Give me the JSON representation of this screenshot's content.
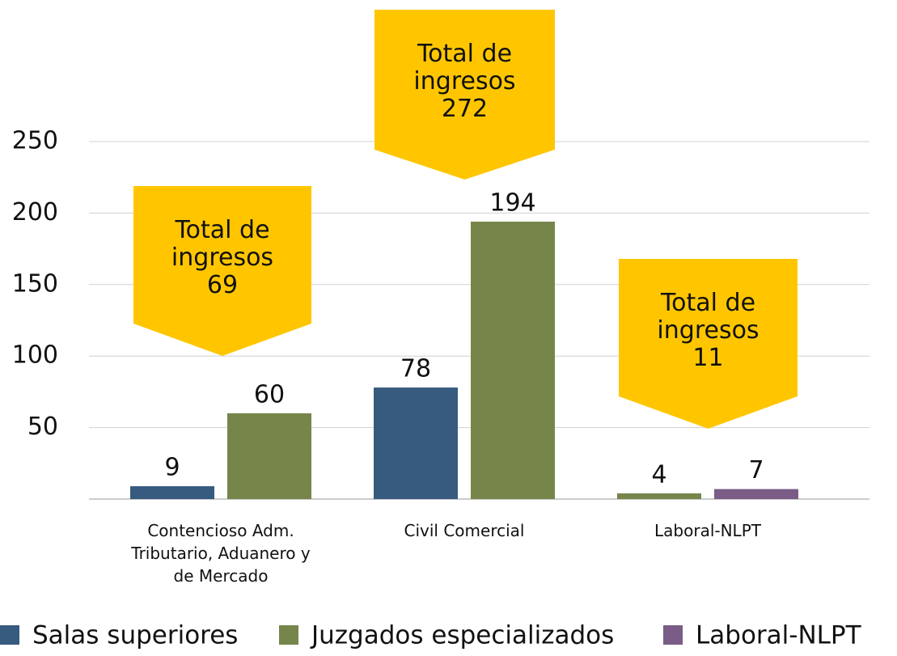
{
  "chart_data": {
    "type": "bar",
    "categories": [
      "Contencioso Adm. Tributario, Aduanero y de Mercado",
      "Civil Comercial",
      "Laboral-NLPT"
    ],
    "series": [
      {
        "name": "Salas superiores",
        "color": "#375a7f",
        "values": [
          9,
          78,
          null
        ]
      },
      {
        "name": "Juzgados especializados",
        "color": "#76864a",
        "values": [
          60,
          194,
          4
        ]
      },
      {
        "name": "Laboral-NLPT",
        "color": "#7a5c86",
        "values": [
          null,
          null,
          7
        ]
      }
    ],
    "annotations": [
      {
        "text": "Total de ingresos",
        "value": 69
      },
      {
        "text": "Total de ingresos",
        "value": 272
      },
      {
        "text": "Total de ingresos",
        "value": 11
      }
    ],
    "ylim": [
      0,
      250
    ],
    "yticks": [
      50,
      100,
      150,
      200,
      250
    ],
    "grid": true,
    "callout_color": "#ffc600"
  }
}
